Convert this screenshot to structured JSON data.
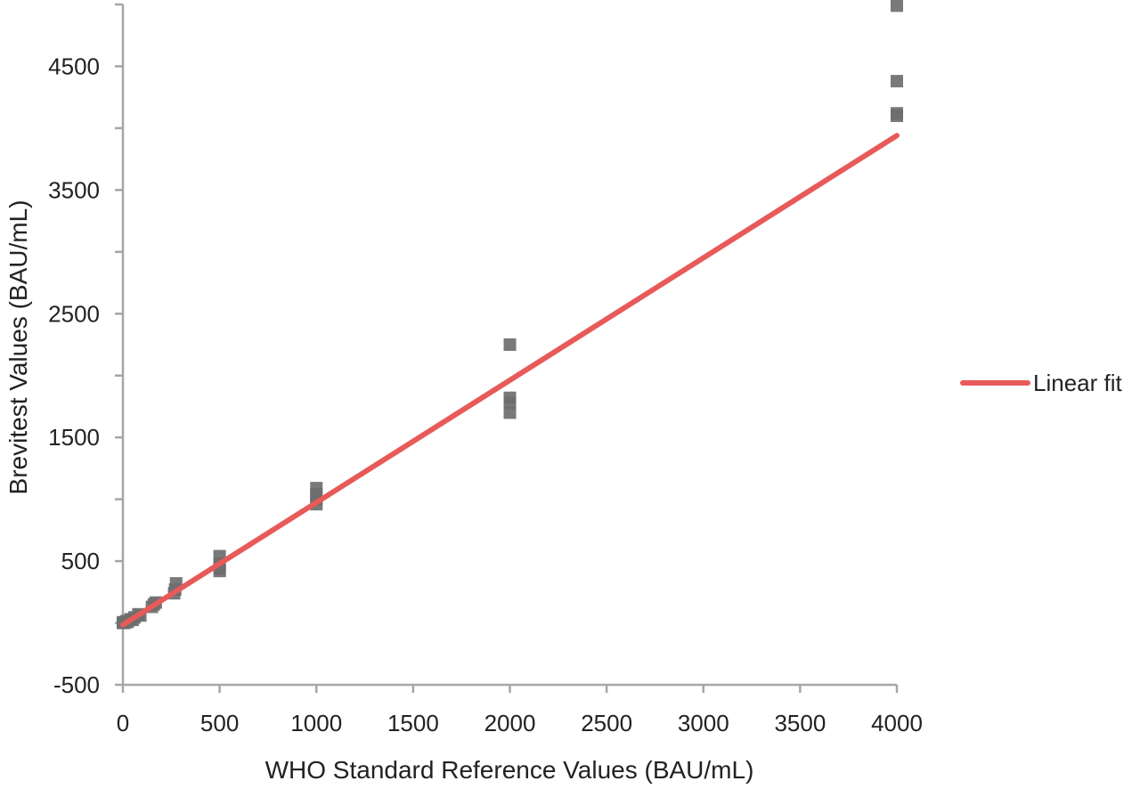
{
  "chart_data": {
    "type": "scatter",
    "xlabel": "WHO Standard Reference Values (BAU/mL)",
    "ylabel": "Brevitest Values (BAU/mL)",
    "xlim": [
      0,
      4000
    ],
    "ylim": [
      -500,
      5000
    ],
    "x_ticks": [
      "0",
      "500",
      "1000",
      "1500",
      "2000",
      "2500",
      "3000",
      "3500",
      "4000"
    ],
    "x_tick_values": [
      0,
      500,
      1000,
      1500,
      2000,
      2500,
      3000,
      3500,
      4000
    ],
    "y_ticks": [
      "-500",
      "500",
      "1500",
      "2500",
      "3500",
      "4500"
    ],
    "y_tick_values": [
      -500,
      500,
      1500,
      2500,
      3500,
      4500
    ],
    "grid": false,
    "legend_position": "right",
    "colors": {
      "points": "#6e6e6e",
      "fit": "#e85a5a",
      "axis": "#a6a6a6"
    },
    "series": [
      {
        "type": "scatter",
        "points": [
          [
            0,
            0
          ],
          [
            0,
            5
          ],
          [
            10,
            2
          ],
          [
            15,
            8
          ],
          [
            20,
            15
          ],
          [
            25,
            10
          ],
          [
            40,
            30
          ],
          [
            50,
            25
          ],
          [
            60,
            45
          ],
          [
            80,
            70
          ],
          [
            90,
            60
          ],
          [
            150,
            130
          ],
          [
            160,
            150
          ],
          [
            170,
            165
          ],
          [
            265,
            240
          ],
          [
            270,
            270
          ],
          [
            275,
            320
          ],
          [
            500,
            420
          ],
          [
            500,
            440
          ],
          [
            500,
            480
          ],
          [
            500,
            540
          ],
          [
            1000,
            960
          ],
          [
            1000,
            1000
          ],
          [
            1000,
            1040
          ],
          [
            1000,
            1090
          ],
          [
            2000,
            1700
          ],
          [
            2000,
            1780
          ],
          [
            2000,
            1820
          ],
          [
            2000,
            2250
          ],
          [
            4000,
            4100
          ],
          [
            4000,
            4120
          ],
          [
            4000,
            4380
          ],
          [
            4000,
            4990
          ]
        ]
      },
      {
        "name": "Linear fit",
        "type": "line",
        "points": [
          [
            0,
            -15
          ],
          [
            4000,
            3940
          ]
        ]
      }
    ]
  }
}
